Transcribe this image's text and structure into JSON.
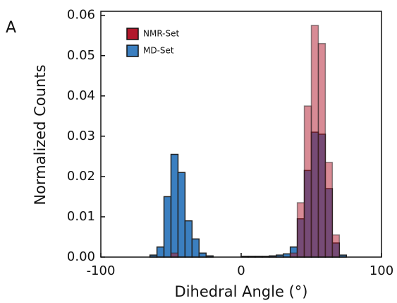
{
  "chart_data": {
    "type": "histogram",
    "panel_label": "A",
    "xlabel": "Dihedral Angle (°)",
    "ylabel": "Normalized Counts",
    "bins": [
      -65,
      -60,
      -55,
      -50,
      -45,
      -40,
      -35,
      -30,
      -25,
      -20,
      -15,
      -10,
      -5,
      0,
      5,
      10,
      15,
      20,
      25,
      30,
      35,
      40,
      45,
      50,
      55,
      60,
      65,
      70,
      75
    ],
    "series": [
      {
        "name": "MD-Set",
        "color": "#3b7fc0",
        "opacity": 1,
        "values": [
          0.0005,
          0.0025,
          0.015,
          0.0255,
          0.021,
          0.009,
          0.0045,
          0.001,
          0.0003,
          0,
          0,
          0,
          0,
          0.0002,
          0.0002,
          0.0002,
          0.0002,
          0.0003,
          0.0005,
          0.0008,
          0.0025,
          0.0095,
          0.0215,
          0.031,
          0.0305,
          0.017,
          0.0035,
          0.0005
        ]
      },
      {
        "name": "NMR-Set",
        "color": "#b2182b",
        "opacity": 0.5,
        "values": [
          0,
          0,
          0,
          0.001,
          0,
          0,
          0,
          0,
          0,
          0,
          0,
          0,
          0,
          0,
          0,
          0,
          0,
          0,
          0,
          0,
          0.001,
          0.0135,
          0.0375,
          0.0575,
          0.053,
          0.0235,
          0.0055,
          0
        ]
      }
    ],
    "legend_order": [
      1,
      0
    ],
    "xlim": [
      -100,
      100
    ],
    "xticks": [
      -100,
      0,
      100
    ],
    "ylim": [
      0,
      0.061
    ],
    "yticks": [
      {
        "value": 0,
        "label": "0.00"
      },
      0.01,
      0.02,
      0.03,
      0.04,
      0.05,
      0.06
    ]
  }
}
